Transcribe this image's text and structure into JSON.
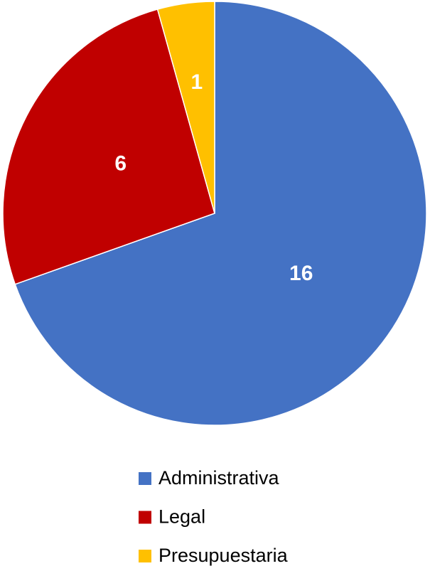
{
  "chart_data": {
    "type": "pie",
    "categories": [
      "Administrativa",
      "Legal",
      "Presupuestaria"
    ],
    "values": [
      16,
      6,
      1
    ],
    "colors": [
      "#4472c4",
      "#c00000",
      "#ffc000"
    ],
    "legend": "bottom"
  }
}
